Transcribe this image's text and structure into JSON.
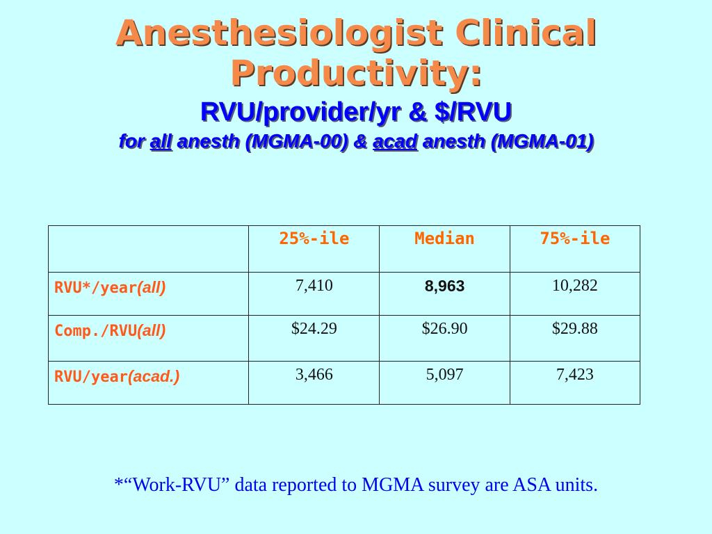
{
  "title": {
    "line1": "Anesthesiologist Clinical",
    "line2": "Productivity:",
    "subtitle": "RVU/provider/yr & $/RVU",
    "subsub": {
      "p1": "for ",
      "u1": "all",
      "p2": " anesth (MGMA-00) & ",
      "u2": "acad",
      "p3": " anesth (MGMA-01)"
    }
  },
  "table": {
    "headers": [
      "",
      "25%-ile",
      "Median",
      "75%-ile"
    ],
    "rows": [
      {
        "label": "RVU*/year",
        "qualifier": "(all)",
        "values": [
          "7,410",
          "8,963",
          "10,282"
        ],
        "bold_index": 1
      },
      {
        "label": "Comp./RVU",
        "qualifier": "(all)",
        "values": [
          "$24.29",
          "$26.90",
          "$29.88"
        ]
      },
      {
        "label": "RVU/year",
        "qualifier": "(acad.)",
        "values": [
          "3,466",
          "5,097",
          "7,423"
        ]
      }
    ]
  },
  "footnote": "*“Work-RVU” data reported to MGMA survey are ASA units.",
  "colors": {
    "background": "#ccffff",
    "title": "#f5894a",
    "subtitle": "#0000ff",
    "header_text": "#ff6600",
    "row_label": "#ff5a1a",
    "footnote": "#0000ee"
  }
}
